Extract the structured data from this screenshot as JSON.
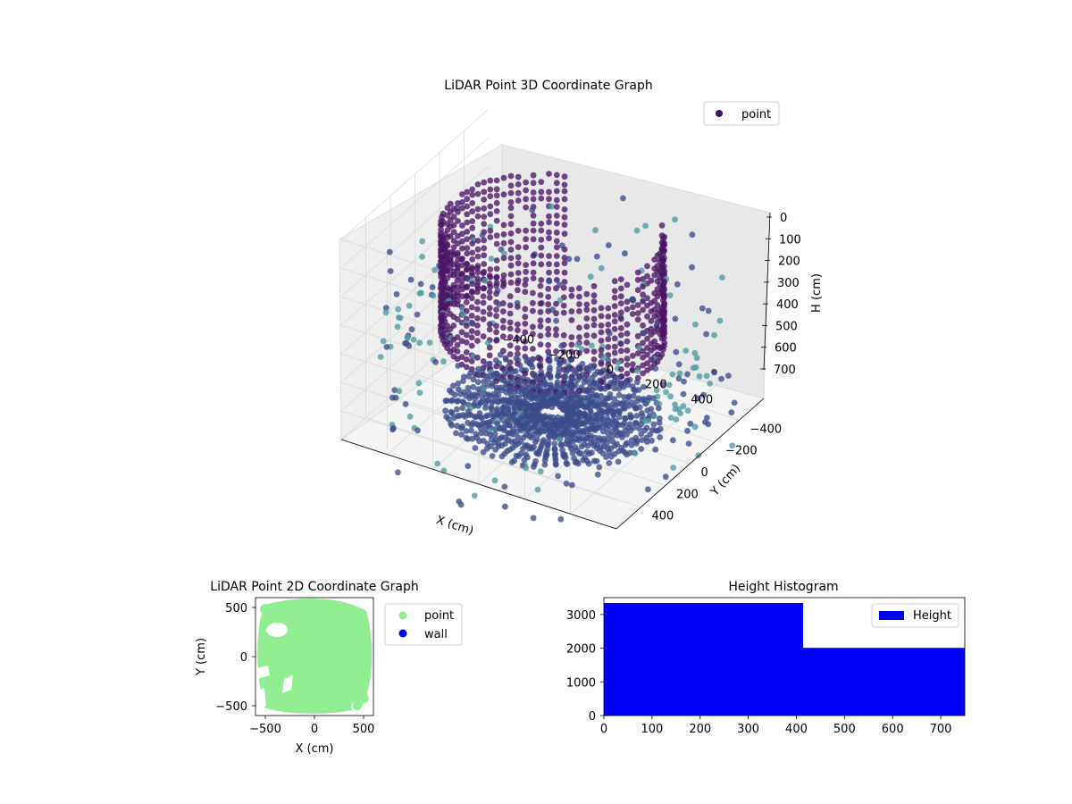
{
  "chart_data": [
    {
      "type": "scatter",
      "projection": "3d",
      "title": "LiDAR Point 3D Coordinate Graph",
      "xlabel": "X (cm)",
      "ylabel": "Y (cm)",
      "zlabel": "H (cm)",
      "xticks": [
        "−400",
        "−200",
        "0",
        "200",
        "400"
      ],
      "xtick_values": [
        -400,
        -200,
        0,
        200,
        400
      ],
      "yticks": [
        "−400",
        "−200",
        "0",
        "200",
        "400"
      ],
      "ytick_values": [
        -400,
        -200,
        0,
        200,
        400
      ],
      "zticks": [
        "0",
        "100",
        "200",
        "300",
        "400",
        "500",
        "600",
        "700"
      ],
      "ztick_values": [
        0,
        100,
        200,
        300,
        400,
        500,
        600,
        700
      ],
      "zaxis_inverted": true,
      "xlim": [
        -600,
        600
      ],
      "ylim": [
        -600,
        600
      ],
      "zlim": [
        0,
        700
      ],
      "grid": true,
      "legend": {
        "position": "upper-right",
        "entries": [
          {
            "label": "point",
            "color": "#440f66"
          }
        ]
      },
      "colormap": "viridis",
      "colors": {
        "high": "#4a1468",
        "mid": "#3b4a8c",
        "low": "#4e9aa0"
      },
      "series": [
        {
          "name": "point",
          "structure": "wall ring",
          "radius": 430,
          "height_range": [
            0,
            420
          ]
        },
        {
          "name": "point",
          "structure": "floor rays",
          "radius_range": [
            50,
            430
          ],
          "height": 680
        },
        {
          "name": "point",
          "structure": "scattered outliers",
          "radius_range": [
            430,
            720
          ],
          "height_range": [
            200,
            760
          ]
        }
      ]
    },
    {
      "type": "scatter",
      "title": "LiDAR Point 2D Coordinate Graph",
      "xlabel": "X (cm)",
      "ylabel": "Y (cm)",
      "xticks": [
        "−500",
        "0",
        "500"
      ],
      "xtick_values": [
        -500,
        0,
        500
      ],
      "yticks": [
        "500",
        "0",
        "−500"
      ],
      "ytick_values": [
        500,
        0,
        -500
      ],
      "xlim": [
        -600,
        600
      ],
      "ylim": [
        -600,
        600
      ],
      "grid": false,
      "legend": {
        "position": "outside-right",
        "entries": [
          {
            "label": "point",
            "color": "#90ee90"
          },
          {
            "label": "wall",
            "color": "#0000ff"
          }
        ]
      },
      "series": [
        {
          "name": "point",
          "color": "#90ee90",
          "extent": [
            -600,
            600
          ]
        },
        {
          "name": "wall",
          "color": "#0000ff",
          "count": 0
        }
      ]
    },
    {
      "type": "bar",
      "subtype": "histogram",
      "title": "Height Histogram",
      "xlabel": "",
      "ylabel": "",
      "xticks": [
        "0",
        "100",
        "200",
        "300",
        "400",
        "500",
        "600",
        "700"
      ],
      "xtick_values": [
        0,
        100,
        200,
        300,
        400,
        500,
        600,
        700
      ],
      "yticks": [
        "0",
        "1000",
        "2000",
        "3000"
      ],
      "ytick_values": [
        0,
        1000,
        2000,
        3000
      ],
      "xlim": [
        0,
        750
      ],
      "ylim": [
        0,
        3500
      ],
      "grid": false,
      "legend": {
        "position": "upper-right",
        "entries": [
          {
            "label": "Height",
            "color": "#0000ff"
          }
        ]
      },
      "bins": [
        {
          "start": 0,
          "end": 414,
          "count": 3340
        },
        {
          "start": 414,
          "end": 750,
          "count": 2010
        }
      ],
      "color": "#0000ff"
    }
  ]
}
